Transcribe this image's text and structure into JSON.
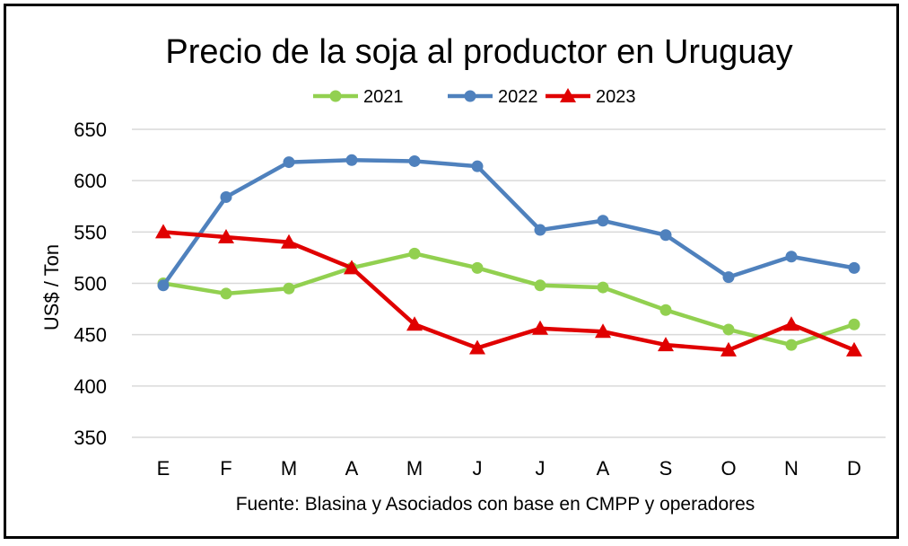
{
  "chart_data": {
    "type": "line",
    "title": "Precio de la soja al productor en Uruguay",
    "ylabel": "US$ / Ton",
    "source": "Fuente: Blasina y Asociados con base en CMPP y operadores",
    "categories": [
      "E",
      "F",
      "M",
      "A",
      "M",
      "J",
      "J",
      "A",
      "S",
      "O",
      "N",
      "D"
    ],
    "ylim": [
      350,
      650
    ],
    "yticks": [
      350,
      400,
      450,
      500,
      550,
      600,
      650
    ],
    "grid": true,
    "legend_position": "top-center",
    "series": [
      {
        "name": "2021",
        "color": "#92D050",
        "marker": "circle",
        "values": [
          500,
          490,
          495,
          515,
          529,
          515,
          498,
          496,
          474,
          455,
          440,
          460
        ]
      },
      {
        "name": "2022",
        "color": "#4F81BD",
        "marker": "circle",
        "values": [
          498,
          584,
          618,
          620,
          619,
          614,
          552,
          561,
          547,
          506,
          526,
          515
        ]
      },
      {
        "name": "2023",
        "color": "#E00000",
        "marker": "triangle",
        "values": [
          550,
          545,
          540,
          515,
          460,
          437,
          456,
          453,
          440,
          435,
          460,
          435
        ]
      }
    ]
  }
}
